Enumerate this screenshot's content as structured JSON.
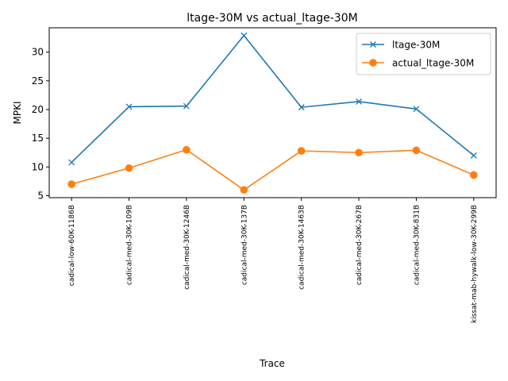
{
  "chart_data": {
    "type": "line",
    "title": "ltage-30M vs actual_ltage-30M",
    "xlabel": "Trace",
    "ylabel": "MPKI",
    "categories": [
      "cadical-low-60K-1186B",
      "cadical-med-30K-109B",
      "cadical-med-30K-1246B",
      "cadical-med-30K-137B",
      "cadical-med-30K-1463B",
      "cadical-med-30K-267B",
      "cadical-med-30K-831B",
      "kissat-mab-hywalk-low-30K-299B"
    ],
    "series": [
      {
        "name": "ltage-30M",
        "color": "#1f77b4",
        "marker": "x",
        "values": [
          10.8,
          20.5,
          20.6,
          32.9,
          20.4,
          21.4,
          20.1,
          12.0
        ]
      },
      {
        "name": "actual_ltage-30M",
        "color": "#ff7f0e",
        "marker": "o",
        "values": [
          7.0,
          9.8,
          13.0,
          6.0,
          12.8,
          12.5,
          12.9,
          8.6
        ]
      }
    ],
    "ylim": [
      4.65,
      34.25
    ],
    "yticks": [
      5,
      10,
      15,
      20,
      25,
      30
    ],
    "grid": false,
    "legend_position": "top-right"
  }
}
